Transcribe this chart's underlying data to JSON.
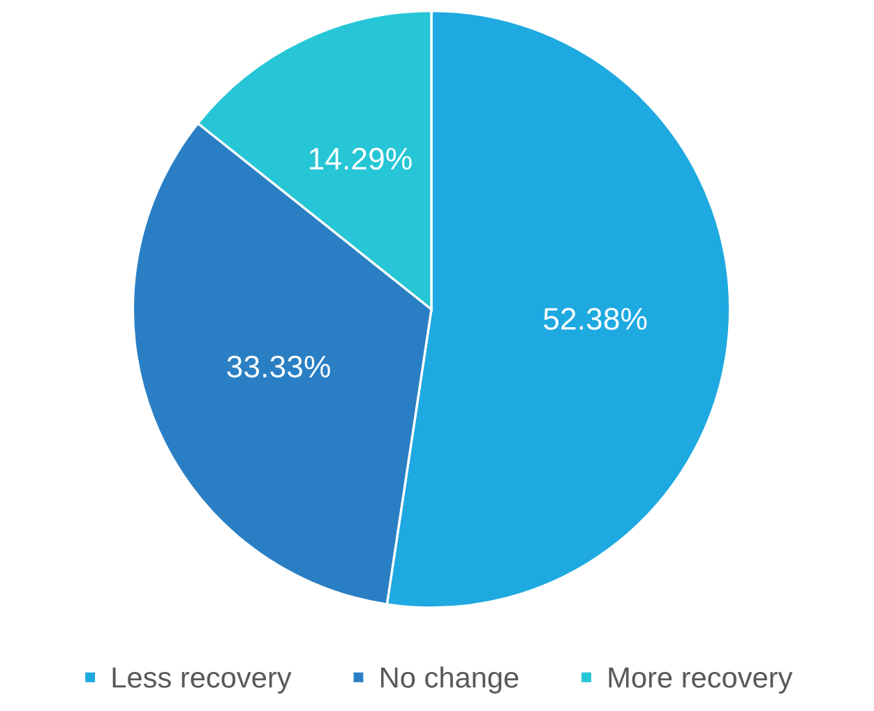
{
  "chart_data": {
    "type": "pie",
    "categories": [
      "Less recovery",
      "No change",
      "More recovery"
    ],
    "values": [
      52.38,
      33.33,
      14.29
    ],
    "colors": [
      "#1ea9e1",
      "#2a7fc4",
      "#26c6d6"
    ],
    "value_labels": [
      "52.38%",
      "33.33%",
      "14.29%"
    ],
    "legend": "bottom"
  }
}
